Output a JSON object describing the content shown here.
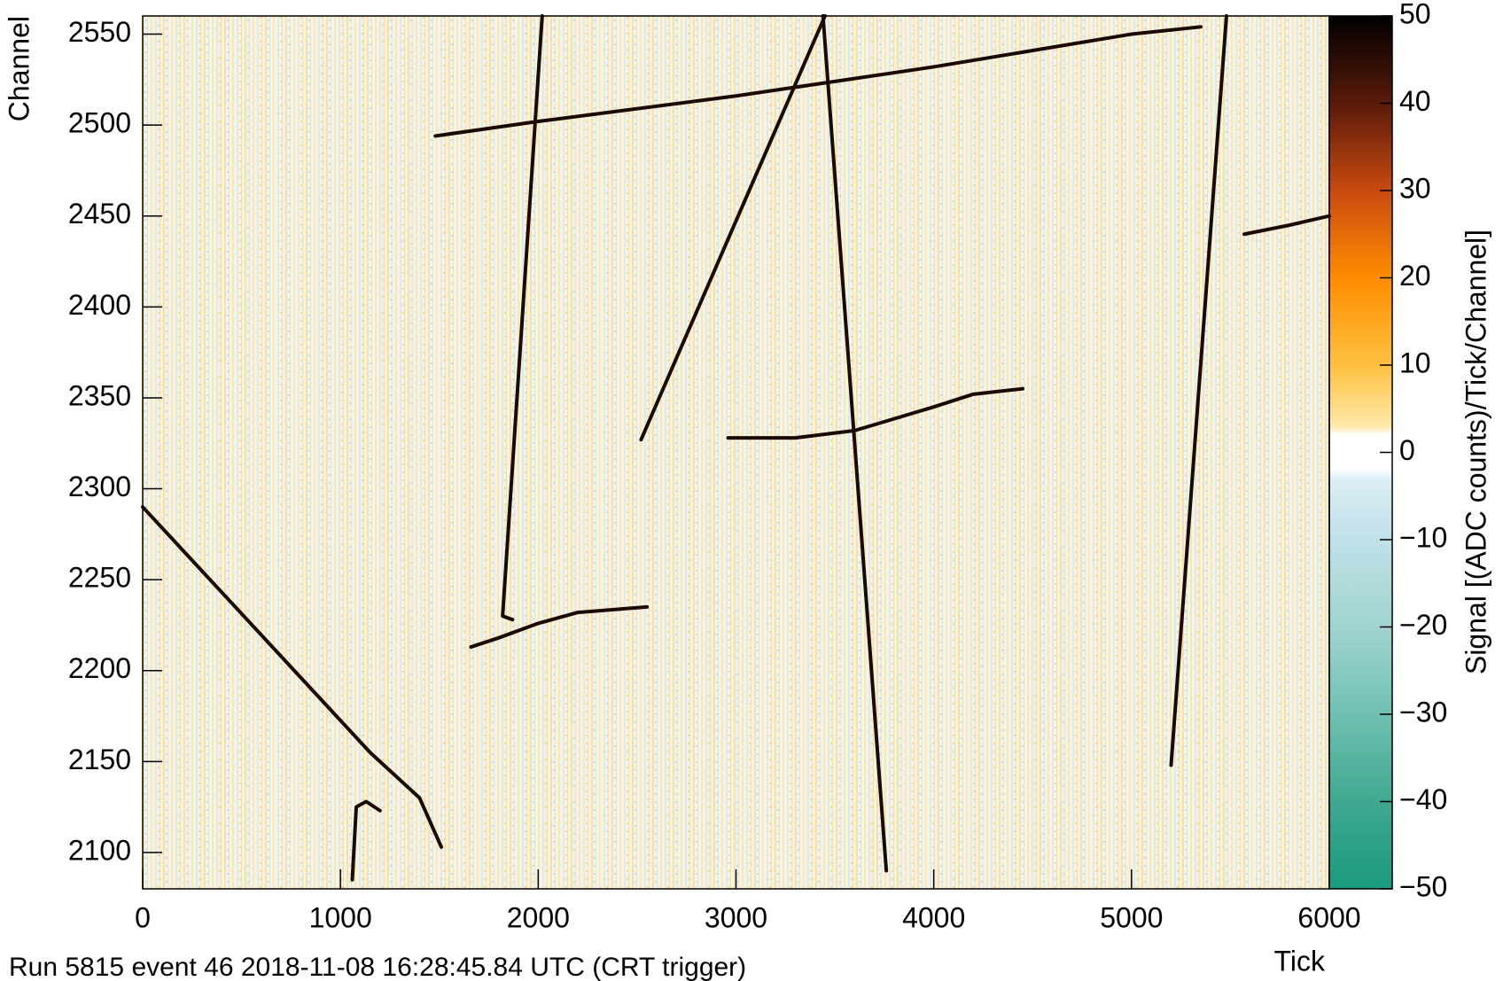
{
  "chart_data": {
    "type": "line",
    "xlabel": "Tick",
    "ylabel": "Channel",
    "zlabel": "Signal [(ADC counts)/Tick/Channel]",
    "annotation": "Run 5815 event 46 2018-11-08 16:28:45.84 UTC (CRT trigger)",
    "xlim": [
      0,
      6000
    ],
    "xticks": [
      0,
      1000,
      2000,
      3000,
      4000,
      5000,
      6000
    ],
    "ylim": [
      2080,
      2560
    ],
    "yticks": [
      2100,
      2150,
      2200,
      2250,
      2300,
      2350,
      2400,
      2450,
      2500,
      2550
    ],
    "zlim": [
      -50,
      50
    ],
    "zticks": [
      {
        "value": -50,
        "label": "−50"
      },
      {
        "value": -40,
        "label": "−40"
      },
      {
        "value": -30,
        "label": "−30"
      },
      {
        "value": -20,
        "label": "−20"
      },
      {
        "value": -10,
        "label": "−10"
      },
      0,
      10,
      20,
      30,
      40,
      50
    ],
    "series": [
      {
        "color": "#1a0a00",
        "x": [
          0,
          1150,
          1400,
          1510
        ],
        "values": [
          2290,
          2155,
          2130,
          2103
        ]
      },
      {
        "color": "#1a0a00",
        "x": [
          1060,
          1080,
          1130,
          1200
        ],
        "values": [
          2085,
          2125,
          2128,
          2123
        ]
      },
      {
        "color": "#1a0a00",
        "x": [
          1870,
          1820,
          2020
        ],
        "values": [
          2228,
          2230,
          2560
        ]
      },
      {
        "color": "#1a0a00",
        "x": [
          1660,
          1800,
          2000,
          2200,
          2550
        ],
        "values": [
          2213,
          2218,
          2226,
          2232,
          2235
        ]
      },
      {
        "color": "#1a0a00",
        "x": [
          1480,
          2000,
          3000,
          4000,
          5000,
          5350
        ],
        "values": [
          2494,
          2502,
          2516,
          2532,
          2550,
          2554
        ]
      },
      {
        "color": "#1a0a00",
        "x": [
          2520,
          3450
        ],
        "values": [
          2327,
          2560
        ]
      },
      {
        "color": "#1a0a00",
        "x": [
          3440,
          3760
        ],
        "values": [
          2560,
          2090
        ]
      },
      {
        "color": "#1a0a00",
        "x": [
          2960,
          3300,
          3600,
          4000,
          4200,
          4450
        ],
        "values": [
          2328,
          2328,
          2332,
          2345,
          2352,
          2355
        ]
      },
      {
        "color": "#1a0a00",
        "x": [
          5200,
          5480
        ],
        "values": [
          2148,
          2560
        ]
      },
      {
        "color": "#1a0a00",
        "x": [
          5570,
          5800,
          6000
        ],
        "values": [
          2440,
          2445,
          2450
        ]
      }
    ]
  }
}
